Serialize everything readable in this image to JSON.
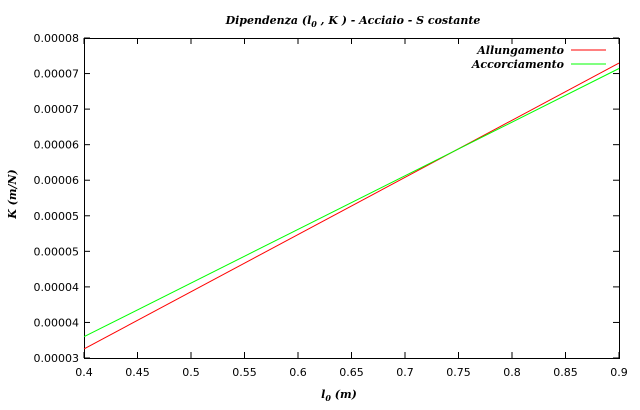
{
  "chart_data": {
    "type": "line",
    "title_parts": [
      "Dipendenza (",
      "l",
      "0",
      " , K ) - Acciaio - S costante"
    ],
    "xlabel_parts": [
      "l",
      "0",
      "  (m)"
    ],
    "ylabel": "K (m/N)",
    "xlim": [
      0.4,
      0.9
    ],
    "ylim": [
      3.4e-05,
      7.6e-05
    ],
    "x_ticks": [
      0.4,
      0.45,
      0.5,
      0.55,
      0.6,
      0.65,
      0.7,
      0.75,
      0.8,
      0.85,
      0.9
    ],
    "x_tick_labels": [
      "0.4",
      "0.45",
      "0.5",
      "0.55",
      "0.6",
      "0.65",
      "0.7",
      "0.75",
      "0.8",
      "0.85",
      "0.9"
    ],
    "y_tick_labels": [
      "0.00003",
      "0.00004",
      "0.00004",
      "0.00005",
      "0.00005",
      "0.00006",
      "0.00006",
      "0.00007",
      "0.00007",
      "0.00008"
    ],
    "legend_position": "top-right",
    "grid": false,
    "series": [
      {
        "name": "Allungamento",
        "color": "#ff0000",
        "x": [
          0.4,
          0.9
        ],
        "y": [
          3.52e-05,
          7.27e-05
        ]
      },
      {
        "name": "Accorciamento",
        "color": "#00ff00",
        "x": [
          0.4,
          0.9
        ],
        "y": [
          3.68e-05,
          7.2e-05
        ]
      }
    ]
  }
}
